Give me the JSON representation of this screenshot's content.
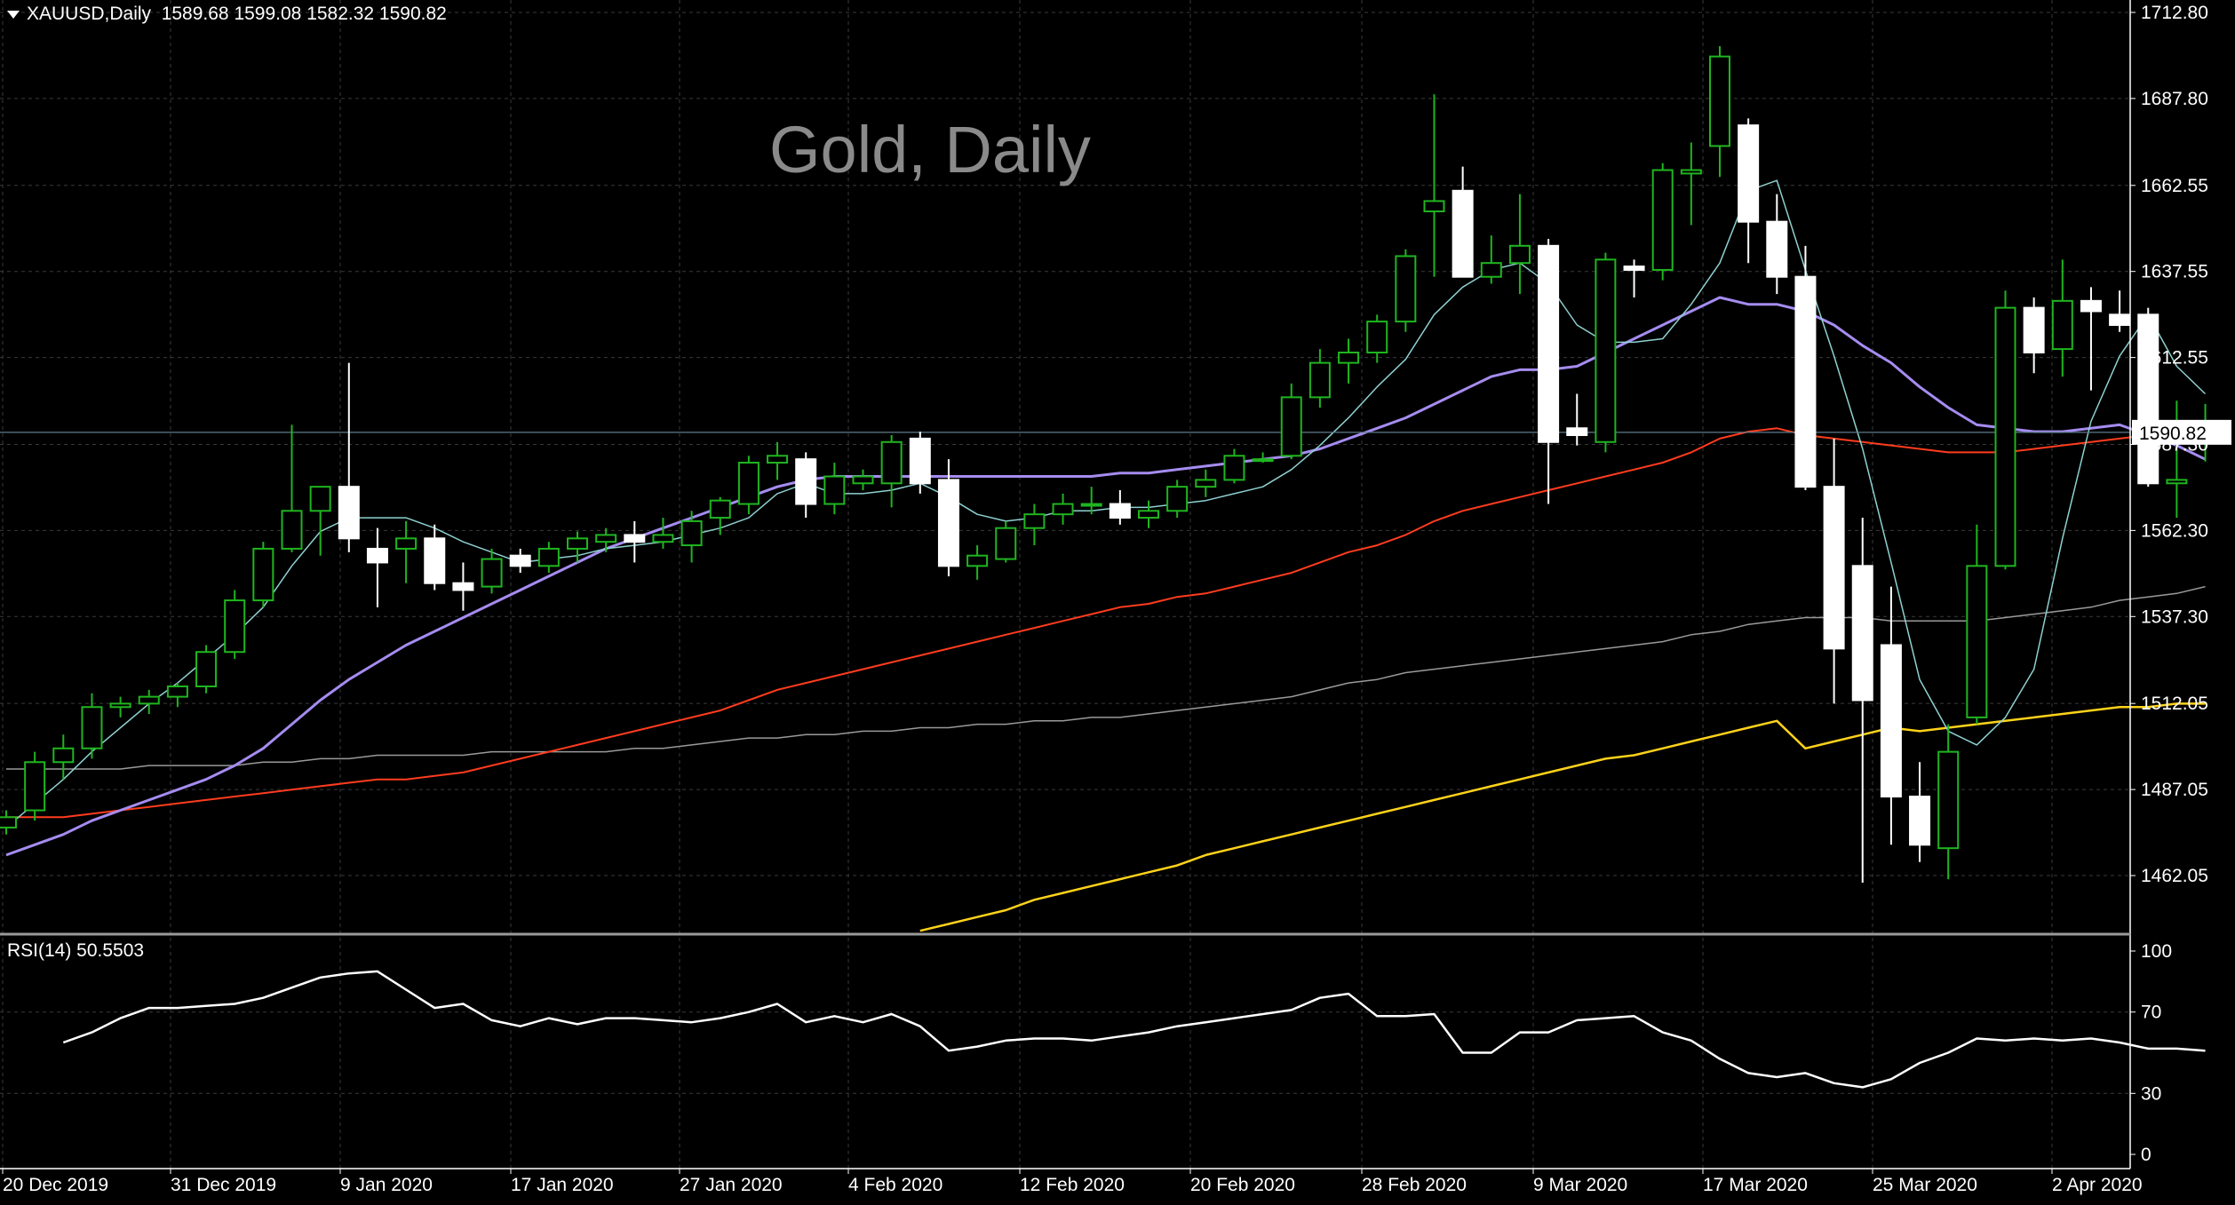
{
  "header": {
    "symbol": "XAUUSD,Daily",
    "ohlc": "1589.68 1599.08 1582.32 1590.82"
  },
  "watermark": "Gold, Daily",
  "price_axis": {
    "ticks": [
      "1712.80",
      "1687.80",
      "1662.55",
      "1637.55",
      "1612.55",
      "1587.30",
      "1562.30",
      "1537.30",
      "1512.05",
      "1487.05",
      "1462.05"
    ],
    "current_price_label": "1590.82"
  },
  "rsi_panel": {
    "label": "RSI(14) 50.5503",
    "ticks": [
      "100",
      "70",
      "30",
      "0"
    ]
  },
  "date_axis": {
    "labels": [
      "20 Dec 2019",
      "31 Dec 2019",
      "9 Jan 2020",
      "17 Jan 2020",
      "27 Jan 2020",
      "4 Feb 2020",
      "12 Feb 2020",
      "20 Feb 2020",
      "28 Feb 2020",
      "9 Mar 2020",
      "17 Mar 2020",
      "25 Mar 2020",
      "2 Apr 2020"
    ]
  },
  "colors": {
    "background": "#000000",
    "grid": "#3a3a3a",
    "candle_up": "#000000",
    "candle_down": "#ffffff",
    "wick_up": "#1fb51f",
    "wick_down": "#ffffff",
    "ma_fast": "#8fd0d0",
    "ma_20": "#a58cf0",
    "ma_50": "#ff3c1e",
    "ma_100": "#9a9a9a",
    "ma_200": "#ffd21a",
    "rsi_line": "#ffffff",
    "current_price_line": "#5f7a8a"
  },
  "chart_data": {
    "type": "candlestick",
    "title": "Gold, Daily",
    "symbol": "XAUUSD,Daily",
    "ylim": [
      1440,
      1720
    ],
    "last_ohlc": [
      1589.68,
      1599.08,
      1582.32,
      1590.82
    ],
    "candles": [
      {
        "o": 1476,
        "h": 1481,
        "l": 1474,
        "c": 1479
      },
      {
        "o": 1481,
        "h": 1498,
        "l": 1478,
        "c": 1495
      },
      {
        "o": 1495,
        "h": 1503,
        "l": 1490,
        "c": 1499
      },
      {
        "o": 1499,
        "h": 1515,
        "l": 1496,
        "c": 1511
      },
      {
        "o": 1511,
        "h": 1514,
        "l": 1508,
        "c": 1512
      },
      {
        "o": 1512,
        "h": 1516,
        "l": 1509,
        "c": 1514
      },
      {
        "o": 1514,
        "h": 1518,
        "l": 1511,
        "c": 1517
      },
      {
        "o": 1517,
        "h": 1529,
        "l": 1515,
        "c": 1527
      },
      {
        "o": 1527,
        "h": 1545,
        "l": 1525,
        "c": 1542
      },
      {
        "o": 1542,
        "h": 1559,
        "l": 1540,
        "c": 1557
      },
      {
        "o": 1557,
        "h": 1593,
        "l": 1556,
        "c": 1568
      },
      {
        "o": 1568,
        "h": 1575,
        "l": 1555,
        "c": 1575
      },
      {
        "o": 1575,
        "h": 1611,
        "l": 1556,
        "c": 1560
      },
      {
        "o": 1557,
        "h": 1563,
        "l": 1540,
        "c": 1553
      },
      {
        "o": 1557,
        "h": 1565,
        "l": 1547,
        "c": 1560
      },
      {
        "o": 1560,
        "h": 1564,
        "l": 1545,
        "c": 1547
      },
      {
        "o": 1547,
        "h": 1553,
        "l": 1539,
        "c": 1545
      },
      {
        "o": 1546,
        "h": 1557,
        "l": 1544,
        "c": 1554
      },
      {
        "o": 1555,
        "h": 1557,
        "l": 1550,
        "c": 1552
      },
      {
        "o": 1552,
        "h": 1559,
        "l": 1550,
        "c": 1557
      },
      {
        "o": 1557,
        "h": 1562,
        "l": 1553,
        "c": 1560
      },
      {
        "o": 1559,
        "h": 1563,
        "l": 1556,
        "c": 1561
      },
      {
        "o": 1561,
        "h": 1565,
        "l": 1553,
        "c": 1559
      },
      {
        "o": 1559,
        "h": 1566,
        "l": 1557,
        "c": 1561
      },
      {
        "o": 1558,
        "h": 1568,
        "l": 1553,
        "c": 1565
      },
      {
        "o": 1566,
        "h": 1572,
        "l": 1561,
        "c": 1571
      },
      {
        "o": 1570,
        "h": 1584,
        "l": 1567,
        "c": 1582
      },
      {
        "o": 1582,
        "h": 1588,
        "l": 1577,
        "c": 1584
      },
      {
        "o": 1583,
        "h": 1585,
        "l": 1566,
        "c": 1570
      },
      {
        "o": 1570,
        "h": 1582,
        "l": 1567,
        "c": 1578
      },
      {
        "o": 1576,
        "h": 1580,
        "l": 1574,
        "c": 1578
      },
      {
        "o": 1576,
        "h": 1590,
        "l": 1569,
        "c": 1588
      },
      {
        "o": 1589,
        "h": 1591,
        "l": 1573,
        "c": 1576
      },
      {
        "o": 1577,
        "h": 1583,
        "l": 1549,
        "c": 1552
      },
      {
        "o": 1552,
        "h": 1558,
        "l": 1548,
        "c": 1555
      },
      {
        "o": 1554,
        "h": 1565,
        "l": 1553,
        "c": 1563
      },
      {
        "o": 1563,
        "h": 1570,
        "l": 1558,
        "c": 1567
      },
      {
        "o": 1567,
        "h": 1573,
        "l": 1564,
        "c": 1570
      },
      {
        "o": 1570,
        "h": 1575,
        "l": 1567,
        "c": 1570
      },
      {
        "o": 1570,
        "h": 1574,
        "l": 1564,
        "c": 1566
      },
      {
        "o": 1566,
        "h": 1571,
        "l": 1563,
        "c": 1568
      },
      {
        "o": 1568,
        "h": 1577,
        "l": 1566,
        "c": 1575
      },
      {
        "o": 1575,
        "h": 1580,
        "l": 1572,
        "c": 1577
      },
      {
        "o": 1577,
        "h": 1586,
        "l": 1576,
        "c": 1584
      },
      {
        "o": 1583,
        "h": 1585,
        "l": 1582,
        "c": 1583
      },
      {
        "o": 1584,
        "h": 1605,
        "l": 1583,
        "c": 1601
      },
      {
        "o": 1601,
        "h": 1615,
        "l": 1598,
        "c": 1611
      },
      {
        "o": 1611,
        "h": 1618,
        "l": 1605,
        "c": 1614
      },
      {
        "o": 1614,
        "h": 1625,
        "l": 1611,
        "c": 1623
      },
      {
        "o": 1623,
        "h": 1644,
        "l": 1620,
        "c": 1642
      },
      {
        "o": 1655,
        "h": 1689,
        "l": 1636,
        "c": 1658
      },
      {
        "o": 1661,
        "h": 1668,
        "l": 1637,
        "c": 1636
      },
      {
        "o": 1636,
        "h": 1648,
        "l": 1634,
        "c": 1640
      },
      {
        "o": 1640,
        "h": 1660,
        "l": 1631,
        "c": 1645
      },
      {
        "o": 1645,
        "h": 1647,
        "l": 1570,
        "c": 1588
      },
      {
        "o": 1592,
        "h": 1602,
        "l": 1587,
        "c": 1590
      },
      {
        "o": 1588,
        "h": 1643,
        "l": 1585,
        "c": 1641
      },
      {
        "o": 1639,
        "h": 1641,
        "l": 1630,
        "c": 1638
      },
      {
        "o": 1638,
        "h": 1669,
        "l": 1635,
        "c": 1667
      },
      {
        "o": 1666,
        "h": 1675,
        "l": 1651,
        "c": 1667
      },
      {
        "o": 1674,
        "h": 1703,
        "l": 1665,
        "c": 1700
      },
      {
        "o": 1680,
        "h": 1682,
        "l": 1640,
        "c": 1652
      },
      {
        "o": 1652,
        "h": 1660,
        "l": 1631,
        "c": 1636
      },
      {
        "o": 1636,
        "h": 1645,
        "l": 1574,
        "c": 1575
      },
      {
        "o": 1575,
        "h": 1589,
        "l": 1512,
        "c": 1528
      },
      {
        "o": 1552,
        "h": 1566,
        "l": 1460,
        "c": 1513
      },
      {
        "o": 1529,
        "h": 1546,
        "l": 1471,
        "c": 1485
      },
      {
        "o": 1485,
        "h": 1495,
        "l": 1466,
        "c": 1471
      },
      {
        "o": 1470,
        "h": 1506,
        "l": 1461,
        "c": 1498
      },
      {
        "o": 1508,
        "h": 1564,
        "l": 1506,
        "c": 1552
      },
      {
        "o": 1552,
        "h": 1632,
        "l": 1551,
        "c": 1627
      },
      {
        "o": 1627,
        "h": 1630,
        "l": 1608,
        "c": 1614
      },
      {
        "o": 1615,
        "h": 1641,
        "l": 1607,
        "c": 1629
      },
      {
        "o": 1629,
        "h": 1633,
        "l": 1603,
        "c": 1626
      },
      {
        "o": 1625,
        "h": 1632,
        "l": 1620,
        "c": 1622
      },
      {
        "o": 1625,
        "h": 1627,
        "l": 1575,
        "c": 1576
      },
      {
        "o": 1576,
        "h": 1600,
        "l": 1566,
        "c": 1577
      },
      {
        "o": 1589.68,
        "h": 1599.08,
        "l": 1582.32,
        "c": 1590.82
      }
    ],
    "indicators": {
      "ma_fast": [
        1476,
        1483,
        1490,
        1498,
        1505,
        1512,
        1518,
        1525,
        1532,
        1540,
        1552,
        1562,
        1566,
        1566,
        1566,
        1563,
        1559,
        1556,
        1553,
        1554,
        1555,
        1557,
        1558,
        1559,
        1561,
        1563,
        1566,
        1573,
        1576,
        1573,
        1573,
        1574,
        1576,
        1572,
        1567,
        1565,
        1566,
        1568,
        1568,
        1569,
        1569,
        1570,
        1571,
        1573,
        1575,
        1580,
        1587,
        1595,
        1604,
        1612,
        1625,
        1633,
        1638,
        1640,
        1634,
        1622,
        1617,
        1617,
        1618,
        1628,
        1640,
        1661,
        1664,
        1638,
        1613,
        1586,
        1553,
        1519,
        1504,
        1500,
        1508,
        1522,
        1560,
        1594,
        1613,
        1625,
        1610,
        1602
      ],
      "ma_20": [
        1468,
        1471,
        1474,
        1478,
        1481,
        1484,
        1487,
        1490,
        1494,
        1499,
        1506,
        1513,
        1519,
        1524,
        1529,
        1533,
        1537,
        1541,
        1545,
        1549,
        1553,
        1557,
        1560,
        1563,
        1566,
        1569,
        1572,
        1575,
        1577,
        1578,
        1578,
        1578,
        1578,
        1578,
        1578,
        1578,
        1578,
        1578,
        1578,
        1579,
        1579,
        1580,
        1581,
        1582,
        1583,
        1584,
        1586,
        1589,
        1592,
        1595,
        1599,
        1603,
        1607,
        1609,
        1609,
        1610,
        1614,
        1618,
        1622,
        1626,
        1630,
        1628,
        1628,
        1626,
        1622,
        1616,
        1611,
        1604,
        1598,
        1593,
        1592,
        1591,
        1591,
        1592,
        1593,
        1590,
        1587,
        1583
      ],
      "ma_50": [
        1479,
        1479,
        1479,
        1480,
        1481,
        1482,
        1483,
        1484,
        1485,
        1486,
        1487,
        1488,
        1489,
        1490,
        1490,
        1491,
        1492,
        1494,
        1496,
        1498,
        1500,
        1502,
        1504,
        1506,
        1508,
        1510,
        1513,
        1516,
        1518,
        1520,
        1522,
        1524,
        1526,
        1528,
        1530,
        1532,
        1534,
        1536,
        1538,
        1540,
        1541,
        1543,
        1544,
        1546,
        1548,
        1550,
        1553,
        1556,
        1558,
        1561,
        1565,
        1568,
        1570,
        1572,
        1574,
        1576,
        1578,
        1580,
        1582,
        1585,
        1589,
        1591,
        1592,
        1590,
        1589,
        1588,
        1587,
        1586,
        1585,
        1585,
        1585,
        1586,
        1587,
        1588,
        1589,
        1590,
        1591,
        1591
      ],
      "ma_100": [
        1493,
        1493,
        1493,
        1493,
        1493,
        1494,
        1494,
        1494,
        1494,
        1495,
        1495,
        1496,
        1496,
        1497,
        1497,
        1497,
        1497,
        1498,
        1498,
        1498,
        1498,
        1498,
        1499,
        1499,
        1500,
        1501,
        1502,
        1502,
        1503,
        1503,
        1504,
        1504,
        1505,
        1505,
        1506,
        1506,
        1507,
        1507,
        1508,
        1508,
        1509,
        1510,
        1511,
        1512,
        1513,
        1514,
        1516,
        1518,
        1519,
        1521,
        1522,
        1523,
        1524,
        1525,
        1526,
        1527,
        1528,
        1529,
        1530,
        1532,
        1533,
        1535,
        1536,
        1537,
        1537,
        1537,
        1536,
        1536,
        1536,
        1536,
        1537,
        1538,
        1539,
        1540,
        1542,
        1543,
        1544,
        1546
      ],
      "ma_200": [
        1380,
        1382,
        1384,
        1386,
        1388,
        1390,
        1392,
        1394,
        1396,
        1398,
        1400,
        1402,
        1404,
        1406,
        1408,
        1410,
        1412,
        1414,
        1416,
        1418,
        1420,
        1423,
        1425,
        1427,
        1429,
        1431,
        1434,
        1436,
        1438,
        1440,
        1442,
        1444,
        1446,
        1448,
        1450,
        1452,
        1455,
        1457,
        1459,
        1461,
        1463,
        1465,
        1468,
        1470,
        1472,
        1474,
        1476,
        1478,
        1480,
        1482,
        1484,
        1486,
        1488,
        1490,
        1492,
        1494,
        1496,
        1497,
        1499,
        1501,
        1503,
        1505,
        1507,
        1499,
        1501,
        1503,
        1505,
        1504,
        1505,
        1506,
        1507,
        1508,
        1509,
        1510,
        1511,
        1511,
        1512,
        1512
      ]
    },
    "rsi": {
      "label": "RSI(14) 50.5503",
      "ylim": [
        0,
        100
      ],
      "levels": [
        30,
        70
      ],
      "values": [
        55,
        60,
        67,
        72,
        72,
        73,
        74,
        77,
        82,
        87,
        89,
        90,
        81,
        72,
        74,
        66,
        63,
        67,
        64,
        67,
        67,
        66,
        65,
        67,
        70,
        74,
        65,
        68,
        65,
        69,
        63,
        51,
        53,
        56,
        57,
        57,
        56,
        58,
        60,
        63,
        65,
        67,
        69,
        71,
        77,
        79,
        68,
        68,
        69,
        50,
        50,
        60,
        60,
        66,
        67,
        68,
        60,
        56,
        47,
        40,
        38,
        40,
        35,
        33,
        37,
        45,
        50,
        57,
        56,
        57,
        56,
        57,
        55,
        52,
        52,
        51
      ]
    }
  }
}
